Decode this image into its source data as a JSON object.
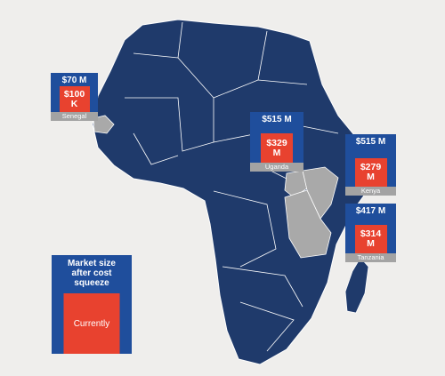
{
  "callouts": [
    {
      "market_size": "$70 M",
      "current": "$100 K",
      "country": "Senegal"
    },
    {
      "market_size": "$515 M",
      "current": "$329 M",
      "country": "Uganda"
    },
    {
      "market_size": "$515 M",
      "current": "$279 M",
      "country": "Kenya"
    },
    {
      "market_size": "$417 M",
      "current": "$314 M",
      "country": "Tanzania"
    }
  ],
  "legend": {
    "title": "Market size after cost squeeze",
    "current": "Currently"
  }
}
